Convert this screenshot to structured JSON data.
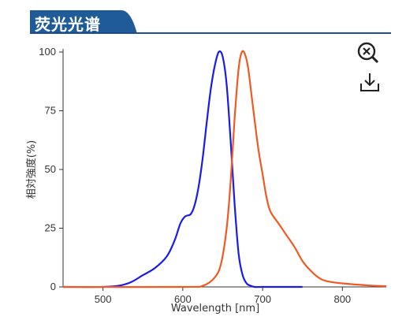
{
  "header": {
    "title": "荧光光谱"
  },
  "toolbar": {
    "zoom_icon": "zoom-reset-icon",
    "download_icon": "download-icon"
  },
  "colors": {
    "header_bg": "#1f5b96",
    "excitation": "#1a1aeb",
    "emission": "#f05a22"
  },
  "chart_data": {
    "type": "line",
    "title": "",
    "xlabel": "Wavelength [nm]",
    "ylabel": "相対強度(%)",
    "xlim": [
      450,
      855
    ],
    "ylim": [
      0,
      100
    ],
    "xticks": [
      500,
      600,
      700,
      800
    ],
    "yticks": [
      0,
      25,
      50,
      75,
      100
    ],
    "grid": false,
    "series": [
      {
        "color": "#1a1aeb",
        "x": [
          450,
          500,
          520,
          535,
          550,
          565,
          580,
          590,
          597,
          603,
          610,
          615,
          620,
          625,
          630,
          635,
          640,
          645,
          650,
          655,
          660,
          665,
          670,
          675,
          680,
          685,
          690,
          700,
          720,
          750
        ],
        "y": [
          0,
          0,
          0.5,
          2,
          5,
          8,
          13,
          20,
          27,
          30,
          31,
          35,
          43,
          55,
          70,
          84,
          94,
          100,
          98,
          86,
          62,
          35,
          14,
          5,
          1.5,
          0.5,
          0,
          0,
          0,
          0
        ]
      },
      {
        "color": "#f05a22",
        "x": [
          450,
          600,
          625,
          640,
          648,
          655,
          660,
          665,
          670,
          674,
          678,
          682,
          686,
          690,
          695,
          700,
          705,
          710,
          720,
          730,
          740,
          750,
          760,
          770,
          780,
          800,
          830,
          855
        ],
        "y": [
          0,
          0,
          0.5,
          4,
          10,
          25,
          45,
          72,
          93,
          100,
          99,
          93,
          82,
          71,
          58,
          48,
          38,
          32,
          27,
          22,
          17,
          11,
          7,
          4,
          2.5,
          1.5,
          0.7,
          0.3
        ]
      }
    ]
  }
}
